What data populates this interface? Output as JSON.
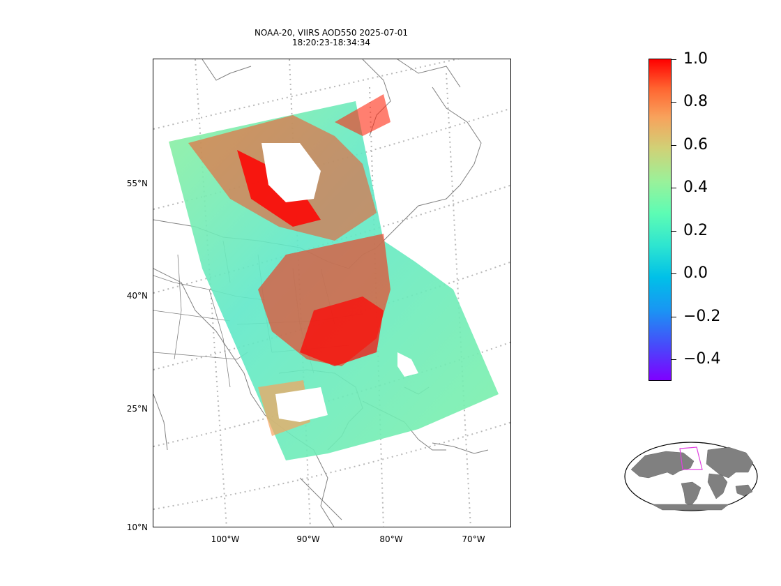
{
  "title": {
    "line1": "NOAA-20, VIIRS AOD550 2025-07-01",
    "line2": "18:20:23-18:34:34"
  },
  "lat_labels": [
    "55°N",
    "40°N",
    "25°N",
    "10°N"
  ],
  "lon_labels": [
    "100°W",
    "90°W",
    "80°W",
    "70°W"
  ],
  "colorbar": {
    "ticks": [
      "1.0",
      "0.8",
      "0.6",
      "0.4",
      "0.2",
      "0.0",
      "−0.2",
      "−0.4"
    ],
    "range": [
      -0.5,
      1.0
    ],
    "colormap": "rainbow"
  },
  "colors": {
    "land_outline": "#808080",
    "gridline": "#b8b8b8",
    "swath_low": "#5fe8c8",
    "swath_high": "#ff0000",
    "inset_land": "#808080",
    "inset_box": "#e040e0"
  }
}
